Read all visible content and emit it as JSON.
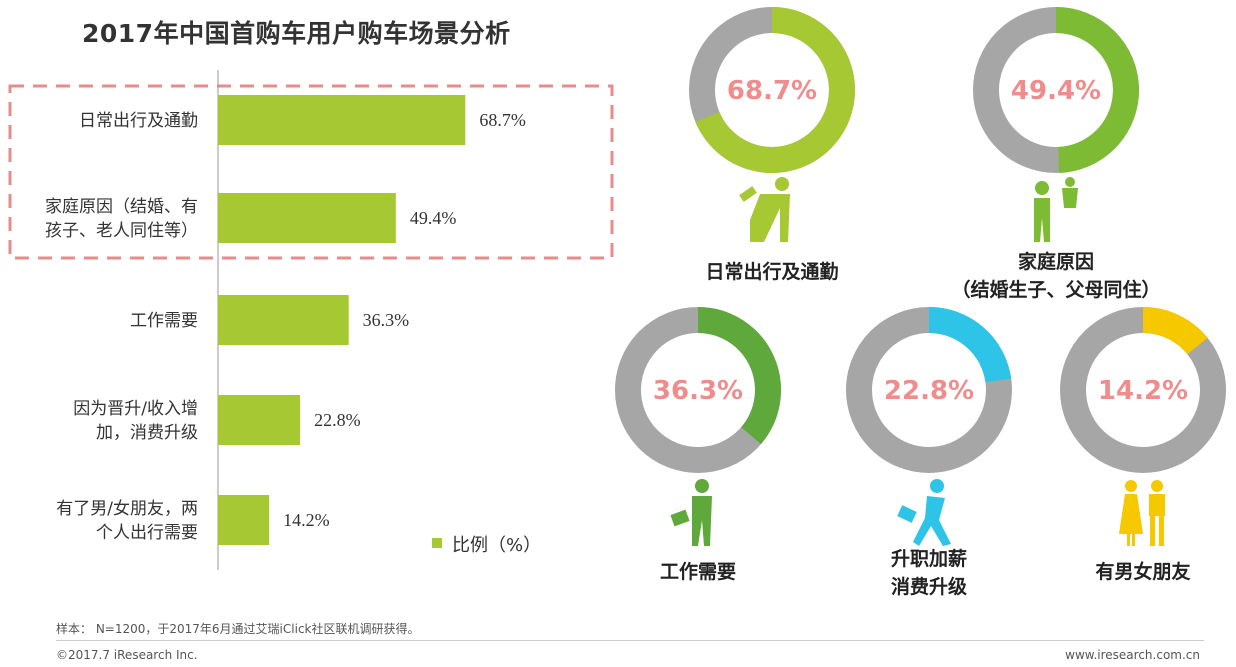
{
  "title": "2017年中国首购车用户购车场景分析",
  "chart_data": [
    {
      "type": "bar",
      "orientation": "horizontal",
      "categories": [
        [
          "日常出行及通勤"
        ],
        [
          "家庭原因（结婚、有",
          "孩子、老人同住等）"
        ],
        [
          "工作需要"
        ],
        [
          "因为晋升/收入增",
          "加，消费升级"
        ],
        [
          "有了男/女朋友，两",
          "个人出行需要"
        ]
      ],
      "series": [
        {
          "name": "比例（%）",
          "values": [
            68.7,
            49.4,
            36.3,
            22.8,
            14.2
          ]
        }
      ],
      "value_labels": [
        "68.7%",
        "49.4%",
        "36.3%",
        "22.8%",
        "14.2%"
      ],
      "legend": {
        "label": "比例（%）",
        "placement": "bottom-right"
      },
      "xlim": [
        0,
        100
      ],
      "grid": false,
      "highlight": {
        "categories_index": [
          0,
          1
        ],
        "style": "dashed-red-box"
      },
      "bar_color": "#A6C832"
    },
    {
      "type": "pie",
      "style": "donut",
      "items": [
        {
          "value": 68.7,
          "label": "68.7%",
          "caption": [
            "日常出行及通勤"
          ],
          "color": "#A6C832",
          "icon": "commuter-driving-icon"
        },
        {
          "value": 49.4,
          "label": "49.4%",
          "caption": [
            "家庭原因",
            "（结婚生子、父母同住）"
          ],
          "color": "#7DBB34",
          "icon": "family-parent-child-icon"
        },
        {
          "value": 36.3,
          "label": "36.3%",
          "caption": [
            "工作需要"
          ],
          "color": "#5FA83B",
          "icon": "businessman-with-briefcase-icon"
        },
        {
          "value": 22.8,
          "label": "22.8%",
          "caption": [
            "升职加薪",
            "消费升级"
          ],
          "color": "#2EC4E8",
          "icon": "promotion-runner-icon"
        },
        {
          "value": 14.2,
          "label": "14.2%",
          "caption": [
            "有男女朋友"
          ],
          "color": "#F5C800",
          "icon": "couple-icon"
        }
      ],
      "remainder_color": "#A6A6A6",
      "pct_color": "#F08C8C"
    }
  ],
  "footer": {
    "note": "样本： N=1200，于2017年6月通过艾瑞iClick社区联机调研获得。",
    "copyright": "©2017.7 iResearch Inc.",
    "website": "www.iresearch.com.cn"
  }
}
